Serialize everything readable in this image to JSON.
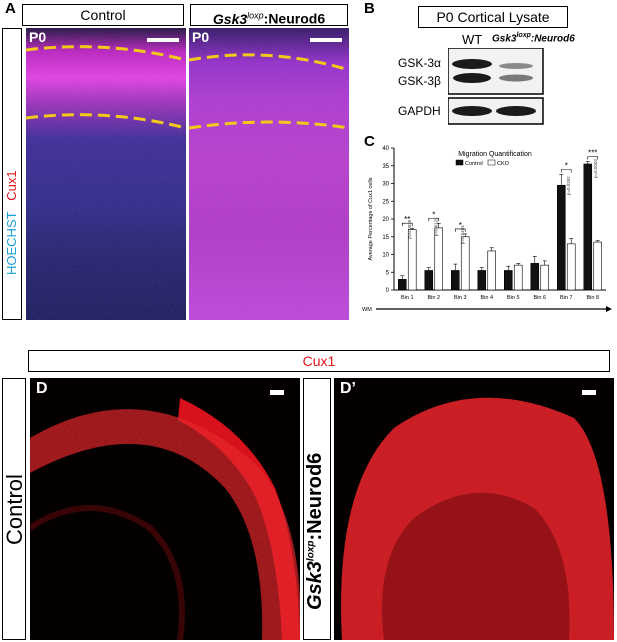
{
  "panels": {
    "A": {
      "letter": "A",
      "control_label": "Control",
      "cko_label_main": "Gsk3",
      "cko_label_sup": "loxp",
      "cko_label_rest": ":Neurod6",
      "age_label": "P0",
      "stain_cux1": "Cux1",
      "stain_hoechst": "HOECHST"
    },
    "B": {
      "letter": "B",
      "title": "P0 Cortical Lysate",
      "col_wt": "WT",
      "col_cko_main": "Gsk3",
      "col_cko_sup": "loxp",
      "col_cko_rest": ":Neurod6",
      "band_gsk3a": "GSK-3α",
      "band_gsk3b": "GSK-3β",
      "band_gapdh": "GAPDH"
    },
    "C": {
      "letter": "C"
    },
    "D": {
      "letter": "D",
      "cux1_label": "Cux1",
      "control_label": "Control"
    },
    "D2": {
      "letter": "D’",
      "cko_label_main": "Gsk3",
      "cko_label_sup": "loxp",
      "cko_label_rest": ":Neurod6"
    }
  },
  "colors": {
    "bar_control": "#111111",
    "bar_cko": "#ffffff",
    "cux1_red": "#e0151c",
    "hoechst_blue": "#1e9fd8",
    "marker_yellow": "#f2c919"
  },
  "chart_data": {
    "type": "bar",
    "title": "Migration Quantification",
    "ylabel": "Average Percentage of Cux1 cells",
    "xlabel_left": "WM",
    "xlabel_right": "PS",
    "ylim": [
      0,
      40
    ],
    "yticks": [
      0,
      5,
      10,
      15,
      20,
      25,
      30,
      35,
      40
    ],
    "categories": [
      "Bin 1",
      "Bin 2",
      "Bin 3",
      "Bin 4",
      "Bin 5",
      "Bin 6",
      "Bin 7",
      "Bin 8"
    ],
    "series": [
      {
        "name": "Control",
        "values": [
          3,
          5.5,
          5.5,
          5.5,
          5.5,
          7.5,
          29.5,
          35.5
        ],
        "errors": [
          1,
          0.8,
          1.8,
          0.8,
          1.2,
          2,
          3,
          0.7
        ]
      },
      {
        "name": "CKO",
        "values": [
          17,
          17.5,
          15,
          11,
          7,
          7,
          13,
          13.5
        ],
        "errors": [
          0.4,
          1.3,
          0.8,
          0.9,
          0.5,
          1.2,
          1.5,
          0.4
        ]
      }
    ],
    "pvalues": [
      "p=0.0036",
      "p=0.0125",
      "p=0.0404",
      "",
      "",
      "",
      "p=0.0392",
      "p=0.0003"
    ],
    "significance": [
      "**",
      "*",
      "*",
      "",
      "",
      "",
      "*",
      "***"
    ]
  }
}
